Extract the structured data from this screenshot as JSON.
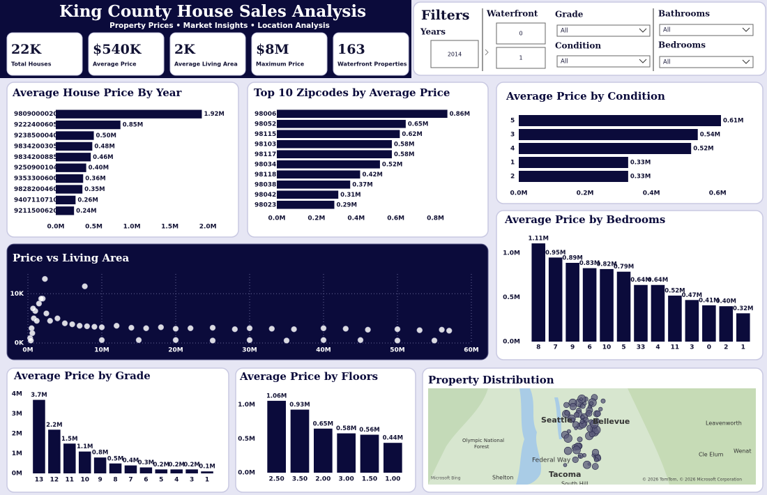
{
  "header": {
    "title": "King County House Sales Analysis",
    "subtitle": "Property Prices • Market Insights • Location Analysis"
  },
  "kpis": [
    {
      "value": "22K",
      "label": "Total Houses"
    },
    {
      "value": "$540K",
      "label": "Average Price"
    },
    {
      "value": "2K",
      "label": "Average Living Area"
    },
    {
      "value": "$8M",
      "label": "Maximum Price"
    },
    {
      "value": "163",
      "label": "Waterfront Properties"
    }
  ],
  "filters": {
    "title": "Filters",
    "years": {
      "label": "Years",
      "value": "2014"
    },
    "waterfront": {
      "label": "Waterfront",
      "options": [
        "0",
        "1"
      ]
    },
    "grade": {
      "label": "Grade",
      "value": "All"
    },
    "condition": {
      "label": "Condition",
      "value": "All"
    },
    "bathrooms": {
      "label": "Bathrooms",
      "value": "All"
    },
    "bedrooms": {
      "label": "Bedrooms",
      "value": "All"
    }
  },
  "chart_data": [
    {
      "type": "hbar",
      "title": "Average House Price By Year",
      "color": "#0b0b3b",
      "categories": [
        "9809000020",
        "9222400605",
        "9238500040",
        "9834200305",
        "9834200885",
        "9250900104",
        "9353300600",
        "9828200460",
        "9407110710",
        "9211500620"
      ],
      "values": [
        1920000,
        850000,
        500000,
        480000,
        460000,
        400000,
        360000,
        350000,
        260000,
        240000
      ],
      "value_labels": [
        "1.92M",
        "0.85M",
        "0.50M",
        "0.48M",
        "0.46M",
        "0.40M",
        "0.36M",
        "0.35M",
        "0.26M",
        "0.24M"
      ],
      "xlim": [
        0,
        2200000
      ],
      "xticks": [
        {
          "value": 0,
          "label": "0.0M"
        },
        {
          "value": 500000,
          "label": "0.5M"
        },
        {
          "value": 1000000,
          "label": "1.0M"
        },
        {
          "value": 1500000,
          "label": "1.5M"
        },
        {
          "value": 2000000,
          "label": "2.0M"
        }
      ]
    },
    {
      "type": "hbar",
      "title": "Top 10 Zipcodes by Average Price",
      "color": "#0b0b3b",
      "categories": [
        "98006",
        "98052",
        "98115",
        "98103",
        "98117",
        "98034",
        "98118",
        "98038",
        "98042",
        "98023"
      ],
      "values": [
        860000,
        650000,
        620000,
        580000,
        580000,
        520000,
        420000,
        370000,
        310000,
        290000
      ],
      "value_labels": [
        "0.86M",
        "0.65M",
        "0.62M",
        "0.58M",
        "0.58M",
        "0.52M",
        "0.42M",
        "0.37M",
        "0.31M",
        "0.29M"
      ],
      "xlim": [
        0,
        900000
      ],
      "xticks": [
        {
          "value": 0,
          "label": "0.0M"
        },
        {
          "value": 200000,
          "label": "0.2M"
        },
        {
          "value": 400000,
          "label": "0.4M"
        },
        {
          "value": 600000,
          "label": "0.6M"
        },
        {
          "value": 800000,
          "label": "0.8M"
        }
      ]
    },
    {
      "type": "hbar",
      "title": "Average Price by Condition",
      "color": "#0b0b3b",
      "categories": [
        "5",
        "3",
        "4",
        "1",
        "2"
      ],
      "values": [
        610000,
        540000,
        520000,
        330000,
        330000
      ],
      "value_labels": [
        "0.61M",
        "0.54M",
        "0.52M",
        "0.33M",
        "0.33M"
      ],
      "xlim": [
        0,
        650000
      ],
      "xticks": [
        {
          "value": 0,
          "label": "0.0M"
        },
        {
          "value": 200000,
          "label": "0.2M"
        },
        {
          "value": 400000,
          "label": "0.4M"
        },
        {
          "value": 600000,
          "label": "0.6M"
        }
      ]
    },
    {
      "type": "vbar",
      "title": "Average Price by Bedrooms",
      "color": "#0b0b3b",
      "categories": [
        "8",
        "7",
        "9",
        "6",
        "10",
        "5",
        "33",
        "4",
        "11",
        "3",
        "0",
        "2",
        "1"
      ],
      "values": [
        1110000,
        950000,
        890000,
        830000,
        820000,
        790000,
        640000,
        640000,
        520000,
        470000,
        410000,
        400000,
        320000
      ],
      "value_labels": [
        "1.11M",
        "0.95M",
        "0.89M",
        "0.83M",
        "0.82M",
        "0.79M",
        "0.64M",
        "0.64M",
        "0.52M",
        "0.47M",
        "0.41M",
        "0.40M",
        "0.32M"
      ],
      "ylim": [
        0,
        1150000
      ],
      "yticks": [
        {
          "value": 0,
          "label": "0.0M"
        },
        {
          "value": 500000,
          "label": "0.5M"
        },
        {
          "value": 1000000,
          "label": "1.0M"
        }
      ]
    },
    {
      "type": "scatter",
      "title": "Price vs Living Area",
      "color": "#ffffff",
      "grid": true,
      "x": [
        300000,
        500000,
        800000,
        1000000,
        1200000,
        1500000,
        2000000,
        2500000,
        3000000,
        1800000,
        600000,
        400000,
        700000,
        4000000,
        5000000,
        6000000,
        7000000,
        8000000,
        9000000,
        10000000,
        12000000,
        14000000,
        16000000,
        18000000,
        20000000,
        22000000,
        25000000,
        28000000,
        30000000,
        33000000,
        36000000,
        40000000,
        43000000,
        46000000,
        50000000,
        53000000,
        56000000,
        57000000,
        10000000,
        15000000,
        20000000,
        25000000,
        30000000,
        35000000,
        40000000,
        45000000,
        50000000,
        55000000,
        2300000,
        7700000
      ],
      "y": [
        1000,
        3000,
        5000,
        6500,
        4500,
        8000,
        9000,
        6000,
        4500,
        9000,
        2000,
        500,
        7000,
        5000,
        4000,
        3800,
        3500,
        3400,
        3300,
        3200,
        3500,
        3100,
        3000,
        3200,
        2900,
        3000,
        3100,
        2800,
        3000,
        2900,
        2800,
        3000,
        2900,
        2700,
        2800,
        2600,
        2700,
        2500,
        600,
        600,
        600,
        500,
        600,
        500,
        600,
        600,
        500,
        500,
        13000,
        11500
      ],
      "xlim": [
        0,
        60000000
      ],
      "xticks": [
        {
          "value": 0,
          "label": "0M"
        },
        {
          "value": 10000000,
          "label": "10M"
        },
        {
          "value": 20000000,
          "label": "20M"
        },
        {
          "value": 30000000,
          "label": "30M"
        },
        {
          "value": 40000000,
          "label": "40M"
        },
        {
          "value": 50000000,
          "label": "50M"
        },
        {
          "value": 60000000,
          "label": "60M"
        }
      ],
      "ylim": [
        0,
        14000
      ],
      "yticks": [
        {
          "value": 0,
          "label": "0K"
        },
        {
          "value": 10000,
          "label": "10K"
        }
      ]
    },
    {
      "type": "vbar",
      "title": "Average Price by Grade",
      "color": "#0b0b3b",
      "categories": [
        "13",
        "12",
        "11",
        "10",
        "9",
        "8",
        "7",
        "6",
        "5",
        "4",
        "3",
        "1"
      ],
      "values": [
        3700000,
        2200000,
        1500000,
        1100000,
        800000,
        500000,
        400000,
        300000,
        200000,
        200000,
        200000,
        100000
      ],
      "value_labels": [
        "3.7M",
        "2.2M",
        "1.5M",
        "1.1M",
        "0.8M",
        "0.5M",
        "0.4M",
        "0.3M",
        "0.2M",
        "0.2M",
        "0.2M",
        "0.1M"
      ],
      "ylim": [
        0,
        4000000
      ],
      "yticks": [
        {
          "value": 0,
          "label": "0M"
        },
        {
          "value": 1000000,
          "label": "1M"
        },
        {
          "value": 2000000,
          "label": "2M"
        },
        {
          "value": 3000000,
          "label": "3M"
        },
        {
          "value": 4000000,
          "label": "4M"
        }
      ]
    },
    {
      "type": "vbar",
      "title": "Average Price by Floors",
      "color": "#0b0b3b",
      "categories": [
        "2.50",
        "3.50",
        "2.00",
        "3.00",
        "1.50",
        "1.00"
      ],
      "values": [
        1060000,
        930000,
        650000,
        580000,
        560000,
        440000
      ],
      "value_labels": [
        "1.06M",
        "0.93M",
        "0.65M",
        "0.58M",
        "0.56M",
        "0.44M"
      ],
      "ylim": [
        0,
        1100000
      ],
      "yticks": [
        {
          "value": 0,
          "label": "0.0M"
        },
        {
          "value": 500000,
          "label": "0.5M"
        },
        {
          "value": 1000000,
          "label": "1.0M"
        }
      ]
    }
  ],
  "map": {
    "title": "Property Distribution",
    "labels": [
      "Seattle",
      "Bellevue",
      "Olympic National",
      "Forest",
      "Federal Way",
      "Tacoma",
      "Shelton",
      "Leavenworth",
      "Cle Elum",
      "Wenat",
      "South Hill"
    ],
    "attribution": "Microsoft Bing",
    "copyright": "© 2026 TomTom, © 2026 Microsoft Corporation"
  }
}
